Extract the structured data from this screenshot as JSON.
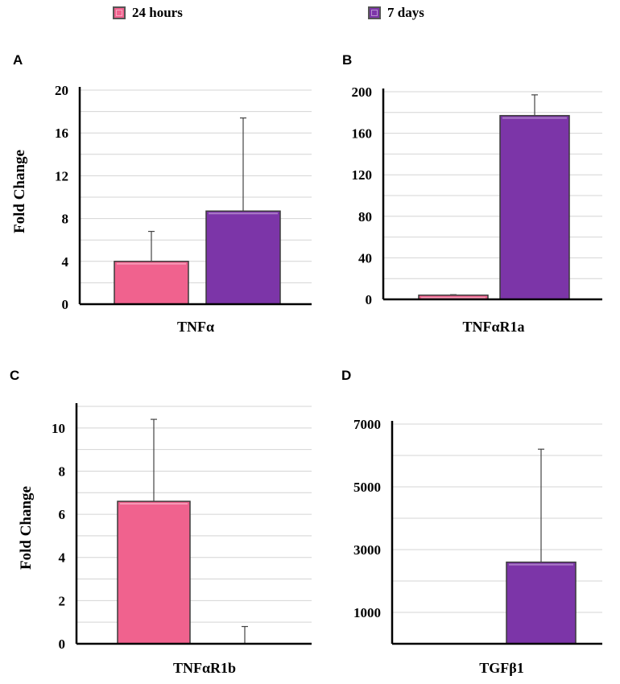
{
  "legend": [
    {
      "label": "24 hours",
      "color": "#f0628e"
    },
    {
      "label": "7 days",
      "color": "#7c35a8"
    }
  ],
  "colors": {
    "series_24h": "#f0628e",
    "series_7d": "#7c35a8",
    "grid": "#d4d4d4",
    "axis": "#000000",
    "error_bar": "#444444"
  },
  "chart_data": [
    {
      "panel": "A",
      "type": "bar",
      "title": "",
      "xlabel": "TNFα",
      "ylabel": "Fold Change",
      "ylim": [
        0,
        20
      ],
      "yticks": [
        0,
        4,
        8,
        12,
        16,
        20
      ],
      "grid": true,
      "series": [
        {
          "name": "24 hours",
          "value": 4.0,
          "error": 2.8
        },
        {
          "name": "7 days",
          "value": 8.7,
          "error": 8.7
        }
      ]
    },
    {
      "panel": "B",
      "type": "bar",
      "title": "",
      "xlabel": "TNFαR1a",
      "ylabel": "",
      "ylim": [
        0,
        200
      ],
      "yticks": [
        0,
        40,
        80,
        120,
        160,
        200
      ],
      "grid": true,
      "series": [
        {
          "name": "24 hours",
          "value": 4,
          "error": 0.5
        },
        {
          "name": "7 days",
          "value": 177,
          "error": 20
        }
      ]
    },
    {
      "panel": "C",
      "type": "bar",
      "title": "",
      "xlabel": "TNFαR1b",
      "ylabel": "Fold Change",
      "ylim": [
        0,
        11
      ],
      "yticks": [
        0,
        2,
        4,
        6,
        8,
        10
      ],
      "grid": true,
      "series": [
        {
          "name": "24 hours",
          "value": 6.6,
          "error": 3.8
        },
        {
          "name": "7 days",
          "value": 0,
          "error": 0.8
        }
      ]
    },
    {
      "panel": "D",
      "type": "bar",
      "title": "",
      "xlabel": "TGFβ1",
      "ylabel": "",
      "ylim": [
        0,
        7000
      ],
      "yticks": [
        1000,
        3000,
        5000,
        7000
      ],
      "grid": true,
      "series": [
        {
          "name": "24 hours",
          "value": 0,
          "error": 0
        },
        {
          "name": "7 days",
          "value": 2600,
          "error": 3600
        }
      ]
    }
  ]
}
